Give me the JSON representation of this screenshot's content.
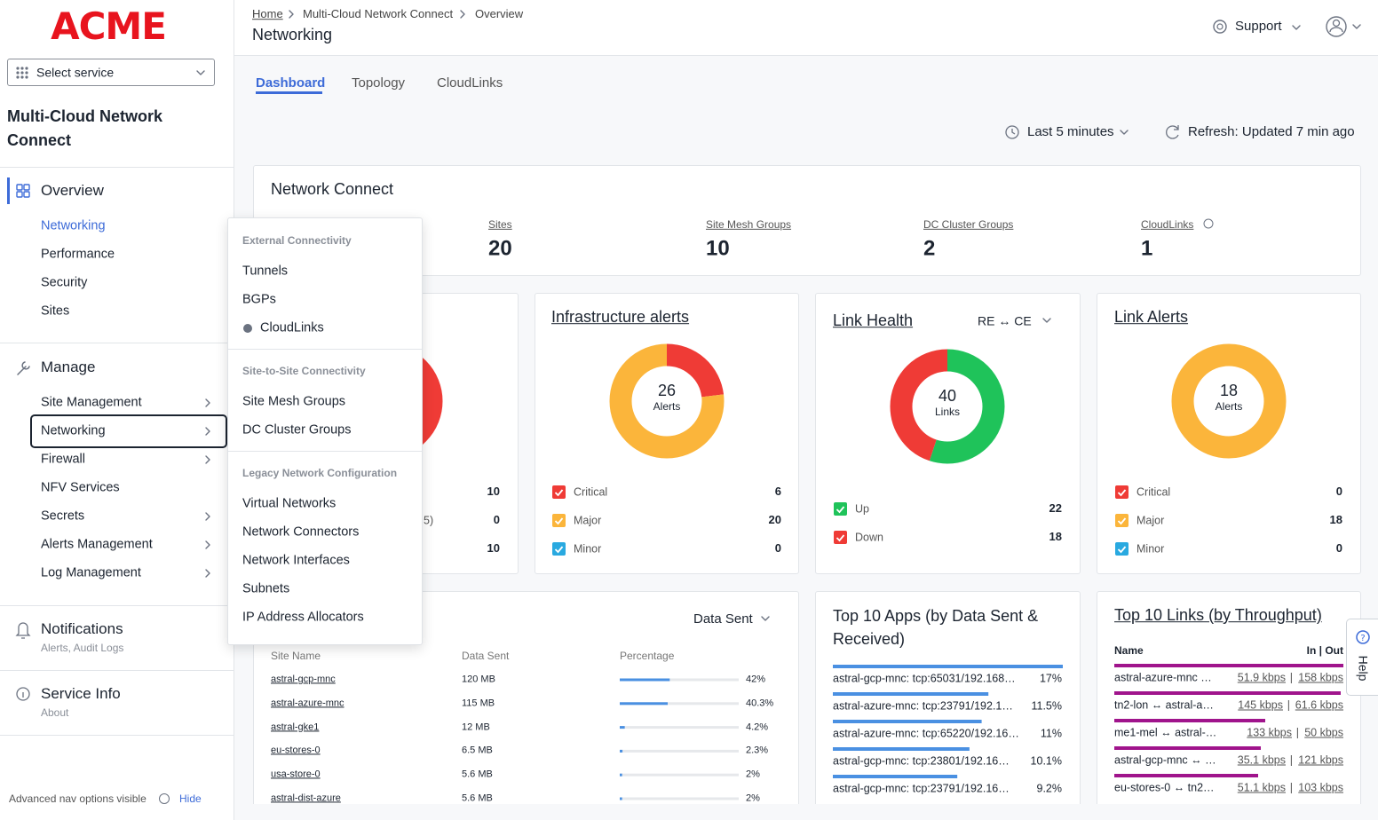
{
  "sidebar": {
    "logo": "ACME",
    "service_select": "Select service",
    "title": "Multi-Cloud Network Connect",
    "overview": {
      "label": "Overview",
      "items": [
        "Networking",
        "Performance",
        "Security",
        "Sites"
      ]
    },
    "manage": {
      "label": "Manage",
      "items": [
        "Site Management",
        "Networking",
        "Firewall",
        "NFV Services",
        "Secrets",
        "Alerts Management",
        "Log Management"
      ]
    },
    "notifications": {
      "label": "Notifications",
      "subtitle": "Alerts, Audit Logs"
    },
    "service_info": {
      "label": "Service Info",
      "subtitle": "About"
    },
    "footer": {
      "text": "Advanced nav options visible",
      "action": "Hide"
    }
  },
  "header": {
    "breadcrumb": [
      "Home",
      "Multi-Cloud Network Connect",
      "Overview"
    ],
    "title": "Networking",
    "support": "Support"
  },
  "tabs": [
    "Dashboard",
    "Topology",
    "CloudLinks"
  ],
  "toolbar": {
    "time_range": "Last 5 minutes",
    "refresh": "Refresh: Updated 7 min ago"
  },
  "network_connect": {
    "title": "Network Connect",
    "stats": [
      {
        "label": "Sites",
        "value": 20
      },
      {
        "label": "Site Mesh Groups",
        "value": 10
      },
      {
        "label": "DC Cluster Groups",
        "value": 2
      },
      {
        "label": "CloudLinks",
        "value": 1
      }
    ]
  },
  "partial_card": {
    "rows": [
      {
        "value": 10
      },
      {
        "label": "5)",
        "value": 0
      },
      {
        "value": 10
      }
    ]
  },
  "infrastructure_alerts": {
    "title": "Infrastructure alerts",
    "total": 26,
    "total_label": "Alerts",
    "series": [
      {
        "name": "Critical",
        "color": "#ef3b36",
        "value": 6
      },
      {
        "name": "Major",
        "color": "#fbb53b",
        "value": 20
      },
      {
        "name": "Minor",
        "color": "#29a9e0",
        "value": 0
      }
    ]
  },
  "link_health": {
    "title": "Link Health",
    "selector": "RE ↔ CE",
    "total": 40,
    "total_label": "Links",
    "series": [
      {
        "name": "Up",
        "color": "#1fc35a",
        "value": 22
      },
      {
        "name": "Down",
        "color": "#ef3b36",
        "value": 18
      }
    ]
  },
  "link_alerts": {
    "title": "Link Alerts",
    "total": 18,
    "total_label": "Alerts",
    "series": [
      {
        "name": "Critical",
        "color": "#ef3b36",
        "value": 0
      },
      {
        "name": "Major",
        "color": "#fbb53b",
        "value": 18
      },
      {
        "name": "Minor",
        "color": "#29a9e0",
        "value": 0
      }
    ]
  },
  "data_sent_table": {
    "selector": "Data Sent",
    "columns": [
      "Site Name",
      "Data Sent",
      "Percentage"
    ],
    "rows": [
      {
        "site": "astral-gcp-mnc",
        "data_sent": "120 MB",
        "percentage": 42,
        "percentage_label": "42%"
      },
      {
        "site": "astral-azure-mnc",
        "data_sent": "115 MB",
        "percentage": 40.3,
        "percentage_label": "40.3%"
      },
      {
        "site": "astral-gke1",
        "data_sent": "12 MB",
        "percentage": 4.2,
        "percentage_label": "4.2%"
      },
      {
        "site": "eu-stores-0",
        "data_sent": "6.5 MB",
        "percentage": 2.3,
        "percentage_label": "2.3%"
      },
      {
        "site": "usa-store-0",
        "data_sent": "5.6 MB",
        "percentage": 2,
        "percentage_label": "2%"
      },
      {
        "site": "astral-dist-azure",
        "data_sent": "5.6 MB",
        "percentage": 2,
        "percentage_label": "2%"
      }
    ]
  },
  "top_apps": {
    "title": "Top 10 Apps (by Data Sent & Received)",
    "rows": [
      {
        "name": "astral-gcp-mnc: tcp:65031/192.168…",
        "percentage": 17,
        "percentage_label": "17%"
      },
      {
        "name": "astral-azure-mnc: tcp:23791/192.1…",
        "percentage": 11.5,
        "percentage_label": "11.5%"
      },
      {
        "name": "astral-azure-mnc: tcp:65220/192.16…",
        "percentage": 11,
        "percentage_label": "11%"
      },
      {
        "name": "astral-gcp-mnc: tcp:23801/192.16…",
        "percentage": 10.1,
        "percentage_label": "10.1%"
      },
      {
        "name": "astral-gcp-mnc: tcp:23791/192.16…",
        "percentage": 9.2,
        "percentage_label": "9.2%"
      }
    ]
  },
  "top_links": {
    "title": "Top 10 Links (by Throughput)",
    "columns": [
      "Name",
      "In | Out"
    ],
    "separator": "|",
    "rows": [
      {
        "name": "astral-azure-mnc …",
        "in": "51.9 kbps",
        "out": "158 kbps"
      },
      {
        "name": "tn2-lon ↔ astral-a…",
        "in": "145 kbps",
        "out": "61.6 kbps"
      },
      {
        "name": "me1-mel ↔ astral-…",
        "in": "133 kbps",
        "out": "50 kbps"
      },
      {
        "name": "astral-gcp-mnc ↔ …",
        "in": "35.1 kbps",
        "out": "121 kbps"
      },
      {
        "name": "eu-stores-0 ↔ tn2…",
        "in": "51.1 kbps",
        "out": "103 kbps"
      }
    ]
  },
  "menu": {
    "sections": [
      {
        "title": "External Connectivity",
        "items": [
          "Tunnels",
          "BGPs",
          "CloudLinks"
        ]
      },
      {
        "title": "Site-to-Site Connectivity",
        "items": [
          "Site Mesh Groups",
          "DC Cluster Groups"
        ]
      },
      {
        "title": "Legacy Network Configuration",
        "items": [
          "Virtual Networks",
          "Network Connectors",
          "Network Interfaces",
          "Subnets",
          "IP Address Allocators"
        ]
      }
    ]
  },
  "help": "Help"
}
